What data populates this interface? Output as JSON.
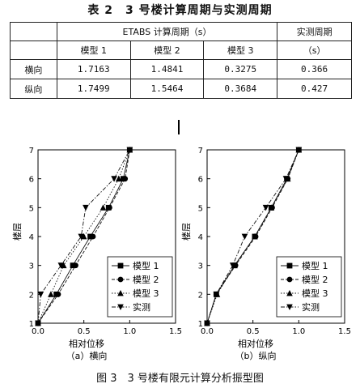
{
  "table": {
    "title": "表 2　3 号楼计算周期与实测周期",
    "header_group": "ETABS 计算周期（s）",
    "header_measured": "实测周期",
    "header_measured_unit": "（s）",
    "col_model1": "模型 1",
    "col_model2": "模型 2",
    "col_model3": "模型 3",
    "rows": [
      {
        "label": "横向",
        "m1": "1.7163",
        "m2": "1.4841",
        "m3": "0.3275",
        "measured": "0.366"
      },
      {
        "label": "纵向",
        "m1": "1.7499",
        "m2": "1.5464",
        "m3": "0.3684",
        "measured": "0.427"
      }
    ]
  },
  "chart_data": [
    {
      "type": "line",
      "xlabel": "相对位移",
      "ylabel": "楼层",
      "subcaption": "（a）横向",
      "xlim": [
        0,
        1.5
      ],
      "ylim": [
        1,
        7
      ],
      "xticks": [
        "0.0",
        "0.5",
        "1.0",
        "1.5"
      ],
      "yticks": [
        "1",
        "2",
        "3",
        "4",
        "5",
        "6",
        "7"
      ],
      "legend_position": "bottom-right",
      "series": [
        {
          "name": "模型 1",
          "marker": "square",
          "style": "solid",
          "x": [
            0.0,
            0.2,
            0.38,
            0.57,
            0.77,
            0.93,
            1.0
          ],
          "y": [
            1,
            2,
            3,
            4,
            5,
            6,
            7
          ]
        },
        {
          "name": "模型 2",
          "marker": "circle",
          "style": "dash",
          "x": [
            0.0,
            0.22,
            0.41,
            0.6,
            0.78,
            0.95,
            1.0
          ],
          "y": [
            1,
            2,
            3,
            4,
            5,
            6,
            7
          ]
        },
        {
          "name": "模型 3",
          "marker": "triangle-up",
          "style": "dot",
          "x": [
            0.0,
            0.14,
            0.28,
            0.5,
            0.71,
            0.88,
            1.0
          ],
          "y": [
            1,
            2,
            3,
            4,
            5,
            6,
            7
          ]
        },
        {
          "name": "实测",
          "marker": "triangle-down",
          "style": "dashdot",
          "x": [
            0.0,
            0.03,
            0.25,
            0.47,
            0.52,
            0.83,
            1.0
          ],
          "y": [
            1,
            2,
            3,
            4,
            5,
            6,
            7
          ]
        }
      ]
    },
    {
      "type": "line",
      "xlabel": "相对位移",
      "ylabel": "楼层",
      "subcaption": "（b）纵向",
      "xlim": [
        0,
        1.5
      ],
      "ylim": [
        1,
        7
      ],
      "xticks": [
        "0.0",
        "0.5",
        "1.0",
        "1.5"
      ],
      "yticks": [
        "1",
        "2",
        "3",
        "4",
        "5",
        "6",
        "7"
      ],
      "legend_position": "bottom-right",
      "series": [
        {
          "name": "模型 1",
          "marker": "square",
          "style": "solid",
          "x": [
            0.0,
            0.1,
            0.3,
            0.52,
            0.7,
            0.87,
            1.0
          ],
          "y": [
            1,
            2,
            3,
            4,
            5,
            6,
            7
          ]
        },
        {
          "name": "模型 2",
          "marker": "circle",
          "style": "dash",
          "x": [
            0.0,
            0.1,
            0.31,
            0.53,
            0.71,
            0.88,
            1.0
          ],
          "y": [
            1,
            2,
            3,
            4,
            5,
            6,
            7
          ]
        },
        {
          "name": "模型 3",
          "marker": "triangle-up",
          "style": "dot",
          "x": [
            0.0,
            0.11,
            0.3,
            0.52,
            0.7,
            0.88,
            1.0
          ],
          "y": [
            1,
            2,
            3,
            4,
            5,
            6,
            7
          ]
        },
        {
          "name": "实测",
          "marker": "triangle-down",
          "style": "dashdot",
          "x": [
            0.0,
            0.1,
            0.28,
            0.41,
            0.64,
            0.86,
            1.0
          ],
          "y": [
            1,
            2,
            3,
            4,
            5,
            6,
            7
          ]
        }
      ]
    }
  ],
  "figure_caption": "图 3　3 号楼有限元计算分析振型图"
}
